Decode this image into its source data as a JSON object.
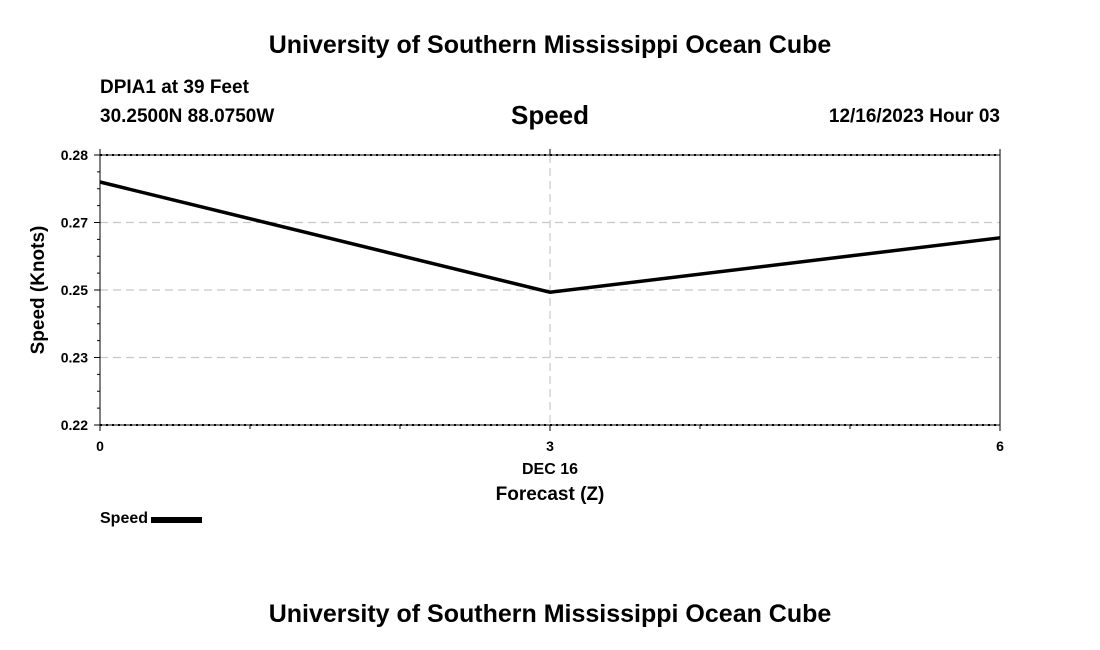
{
  "header": {
    "title": "University of Southern Mississippi Ocean Cube",
    "station": "DPIA1 at 39 Feet",
    "coordinates": "30.2500N  88.0750W",
    "chart_title": "Speed",
    "timestamp": "12/16/2023 Hour 03"
  },
  "footer": {
    "title": "University of Southern Mississippi Ocean Cube"
  },
  "legend": {
    "label": "Speed",
    "color": "#000000"
  },
  "chart_data": {
    "type": "line",
    "title": "Speed",
    "xlabel": "Forecast (Z)",
    "x_date_label": "DEC 16",
    "ylabel": "Speed (Knots)",
    "x": [
      0,
      3,
      6
    ],
    "x_ticks": [
      0,
      3,
      6
    ],
    "y_ticks": [
      "0.22",
      "0.23",
      "0.25",
      "0.27",
      "0.28"
    ],
    "ylim": [
      0.22,
      0.28
    ],
    "xlim": [
      0,
      6
    ],
    "grid": true,
    "legend_position": "bottom-left",
    "series": [
      {
        "name": "Speed",
        "values": [
          0.274,
          0.2495,
          0.2616
        ],
        "color": "#000000"
      }
    ]
  }
}
